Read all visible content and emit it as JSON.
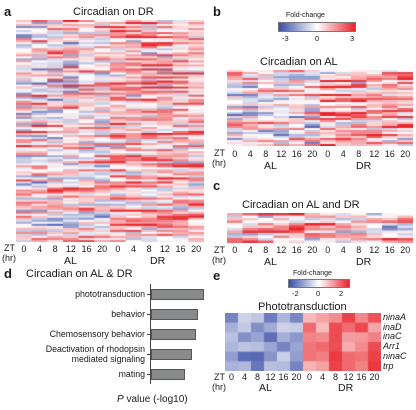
{
  "panels": {
    "a": {
      "letter": "a",
      "title": "Circadian on DR"
    },
    "b": {
      "letter": "b",
      "title": "Circadian on AL"
    },
    "c": {
      "letter": "c",
      "title": "Circadian on AL and DR"
    },
    "d": {
      "letter": "d",
      "title": "Circadian on AL & DR"
    },
    "e": {
      "letter": "e",
      "title": "Phototransduction"
    }
  },
  "axis_labels": {
    "zt": "ZT",
    "hr": "(hr)",
    "al": "AL",
    "dr": "DR"
  },
  "zt_ticks": [
    "0",
    "4",
    "8",
    "12",
    "16",
    "20",
    "0",
    "4",
    "8",
    "12",
    "16",
    "20"
  ],
  "colorbar_b": {
    "label": "Fold-change",
    "ticks": [
      "-3",
      "0",
      "3"
    ]
  },
  "colorbar_e": {
    "label": "Fold-change",
    "ticks": [
      "-2",
      "0",
      "2"
    ]
  },
  "phototransduction_genes": [
    "ninaA",
    "inaD",
    "inaC",
    "Arr1",
    "ninaC",
    "trp"
  ],
  "colors": {
    "low": "#3a4fa8",
    "mid": "#ffffff",
    "high": "#e8242b",
    "bar": "#888a8c"
  },
  "chart_data": {
    "type": "bar",
    "orientation": "horizontal",
    "categories": [
      "phototransduction",
      "behavior",
      "Chemosensory behavior",
      "Deactivation of rhodopsin mediated signaling",
      "mating"
    ],
    "category_lines": [
      [
        "phototransduction"
      ],
      [
        "behavior"
      ],
      [
        "Chemosensory behavior"
      ],
      [
        "Deactivation of rhodopsin",
        "mediated signaling"
      ],
      [
        "mating"
      ]
    ],
    "values": [
      8.9,
      7.9,
      7.5,
      6.8,
      5.7
    ],
    "xlabel_italic": "P",
    "xlabel_rest": " value (-log10)",
    "xlim": [
      0,
      10
    ]
  }
}
